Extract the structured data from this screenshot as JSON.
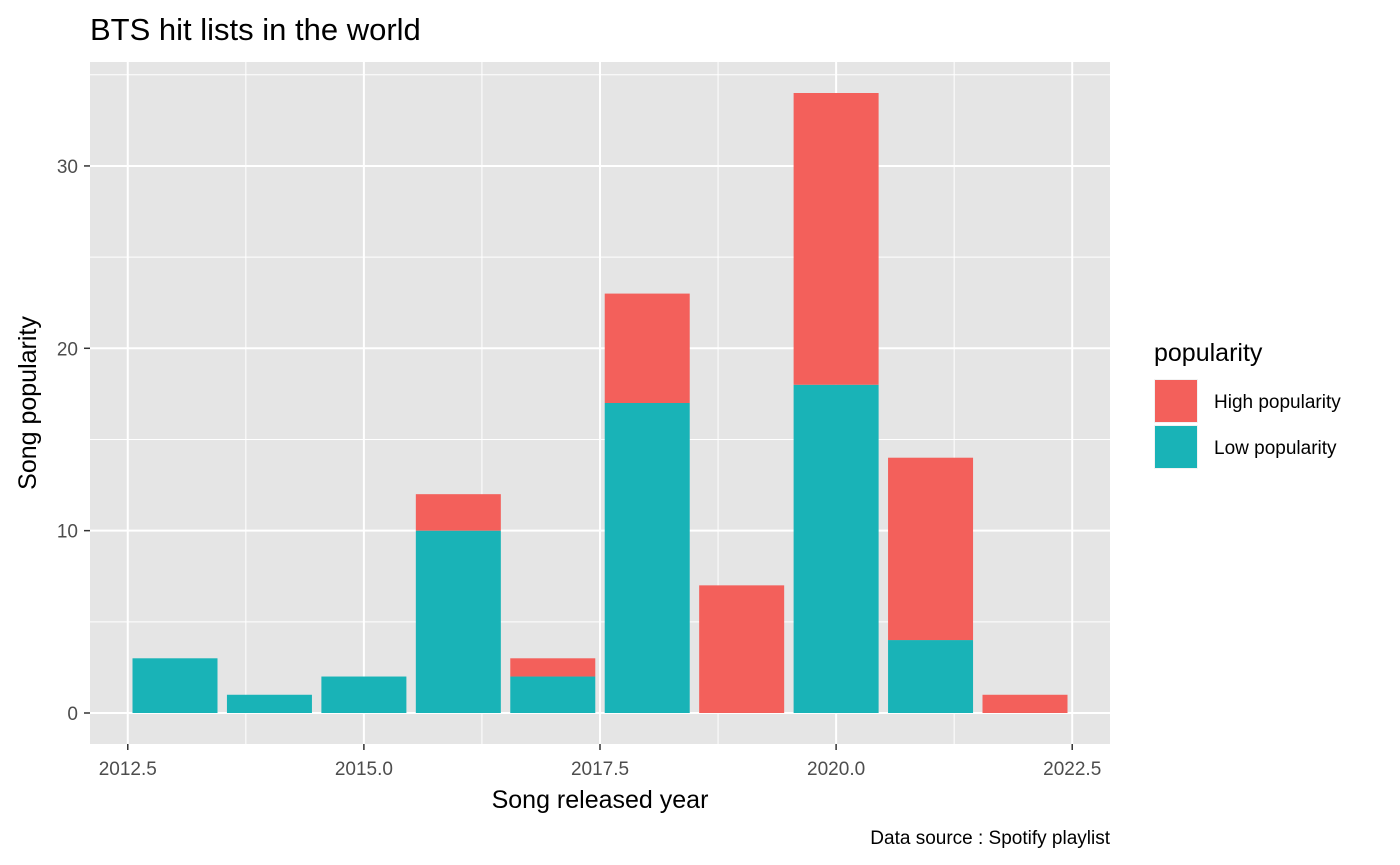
{
  "chart_data": {
    "type": "bar",
    "stacked": true,
    "title": "BTS hit lists in the world",
    "xlabel": "Song released year",
    "ylabel": "Song popularity",
    "caption": "Data source : Spotify playlist",
    "x": [
      2013,
      2014,
      2015,
      2016,
      2017,
      2018,
      2019,
      2020,
      2021,
      2022
    ],
    "series": [
      {
        "name": "High popularity",
        "color": "#F3605B",
        "values": [
          0,
          0,
          0,
          2,
          1,
          6,
          7,
          16,
          10,
          1
        ]
      },
      {
        "name": "Low popularity",
        "color": "#19B3B7",
        "values": [
          3,
          1,
          2,
          10,
          2,
          17,
          0,
          18,
          4,
          0
        ]
      }
    ],
    "xlim": [
      2012.1,
      2022.9
    ],
    "ylim": [
      -1.7,
      35.7
    ],
    "x_ticks": [
      2012.5,
      2015.0,
      2017.5,
      2020.0,
      2022.5
    ],
    "x_tick_labels": [
      "2012.5",
      "2015.0",
      "2017.5",
      "2020.0",
      "2022.5"
    ],
    "y_ticks": [
      0,
      10,
      20,
      30
    ],
    "y_tick_labels": [
      "0",
      "10",
      "20",
      "30"
    ],
    "legend": {
      "title": "popularity",
      "position": "right"
    },
    "grid": true,
    "panel_background": "#E5E5E5"
  }
}
